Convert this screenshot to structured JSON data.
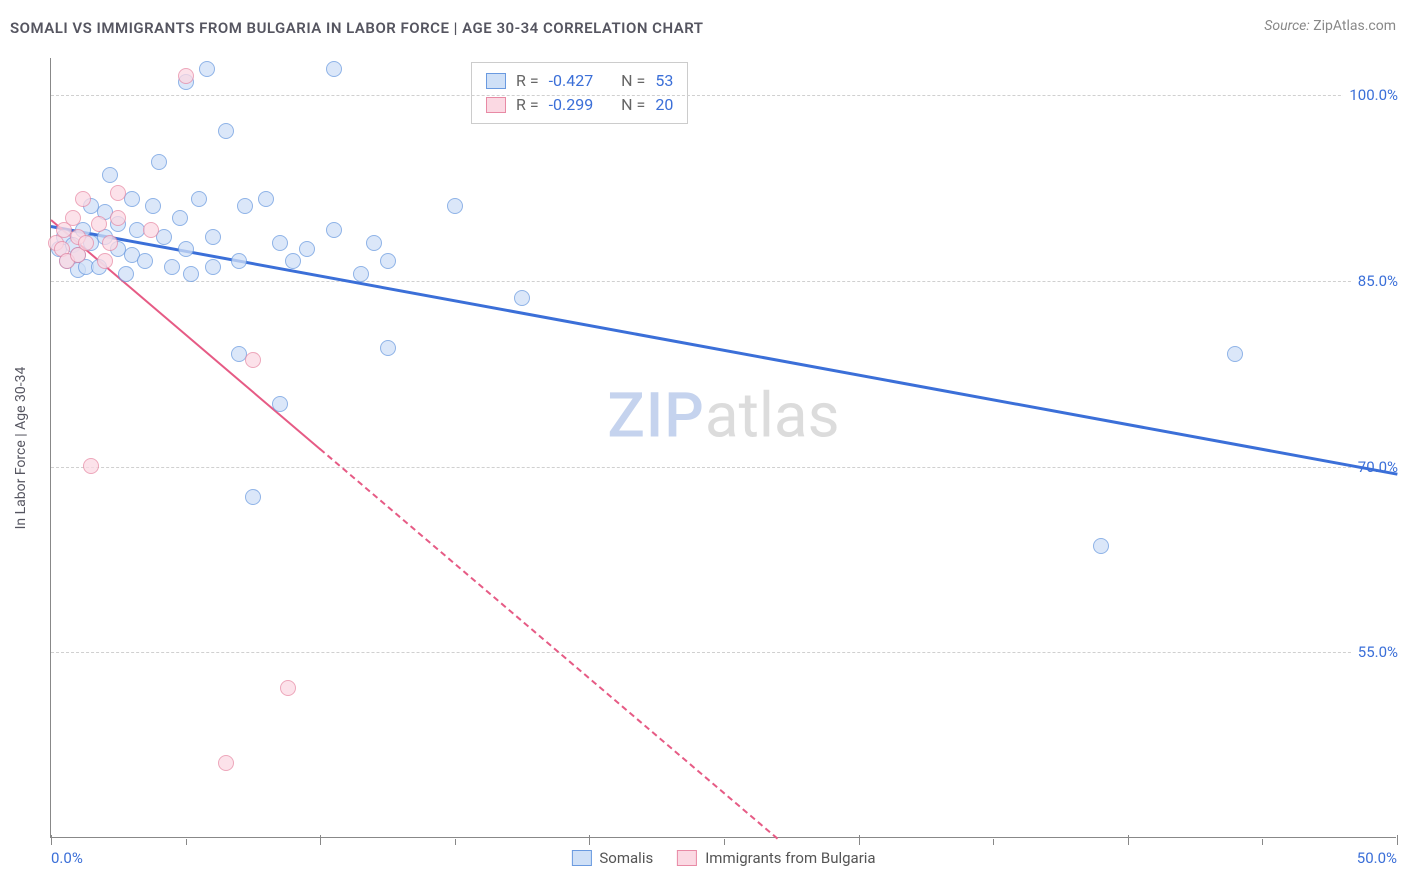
{
  "header": {
    "title": "SOMALI VS IMMIGRANTS FROM BULGARIA IN LABOR FORCE | AGE 30-34 CORRELATION CHART",
    "source_label": "Source:",
    "source_value": "ZipAtlas.com"
  },
  "chart": {
    "type": "scatter",
    "ylabel": "In Labor Force | Age 30-34",
    "xlim": [
      0,
      50
    ],
    "ylim": [
      40,
      103
    ],
    "background_color": "#ffffff",
    "grid_color": "#d0d0d0",
    "axis_color": "#888888",
    "tick_label_color": "#3b6fd8",
    "yticks": [
      {
        "v": 100,
        "label": "100.0%"
      },
      {
        "v": 85,
        "label": "85.0%"
      },
      {
        "v": 70,
        "label": "70.0%"
      },
      {
        "v": 55,
        "label": "55.0%"
      }
    ],
    "xticks_major": [
      0,
      10,
      20,
      30,
      40,
      50
    ],
    "xticks_minor": [
      5,
      15,
      25,
      35,
      45
    ],
    "xtick_labels": [
      {
        "v": 0,
        "label": "0.0%"
      },
      {
        "v": 50,
        "label": "50.0%"
      }
    ],
    "point_radius": 8,
    "series": [
      {
        "name": "Somalis",
        "fill": "#cfe0f7",
        "stroke": "#6a9ae0",
        "fill_opacity": 0.75,
        "trend": {
          "x1": 0,
          "y1": 89.5,
          "x2": 50,
          "y2": 69.5,
          "color": "#3b6fd8",
          "width": 2.5,
          "dashed_after_x": null
        },
        "stats": {
          "R": "-0.427",
          "N": "53"
        },
        "points": [
          [
            0.3,
            87.5
          ],
          [
            0.5,
            88.5
          ],
          [
            0.6,
            86.5
          ],
          [
            0.8,
            87.8
          ],
          [
            1.0,
            87.0
          ],
          [
            1.0,
            85.8
          ],
          [
            1.2,
            89.0
          ],
          [
            1.3,
            86.0
          ],
          [
            1.5,
            88.0
          ],
          [
            1.5,
            91.0
          ],
          [
            1.8,
            86.0
          ],
          [
            2.0,
            88.5
          ],
          [
            2.0,
            90.5
          ],
          [
            2.2,
            93.5
          ],
          [
            2.5,
            87.5
          ],
          [
            2.5,
            89.5
          ],
          [
            2.8,
            85.5
          ],
          [
            3.0,
            91.5
          ],
          [
            3.0,
            87.0
          ],
          [
            3.2,
            89.0
          ],
          [
            3.5,
            86.5
          ],
          [
            3.8,
            91.0
          ],
          [
            4.0,
            94.5
          ],
          [
            4.2,
            88.5
          ],
          [
            4.5,
            86.0
          ],
          [
            4.8,
            90.0
          ],
          [
            5.0,
            87.5
          ],
          [
            5.0,
            101.0
          ],
          [
            5.2,
            85.5
          ],
          [
            5.5,
            91.5
          ],
          [
            5.8,
            102.0
          ],
          [
            6.0,
            86.0
          ],
          [
            6.0,
            88.5
          ],
          [
            6.5,
            97.0
          ],
          [
            7.0,
            86.5
          ],
          [
            7.0,
            79.0
          ],
          [
            7.2,
            91.0
          ],
          [
            7.5,
            67.5
          ],
          [
            8.0,
            91.5
          ],
          [
            8.5,
            88.0
          ],
          [
            8.5,
            75.0
          ],
          [
            9.0,
            86.5
          ],
          [
            9.5,
            87.5
          ],
          [
            10.5,
            89.0
          ],
          [
            10.5,
            102.0
          ],
          [
            11.5,
            85.5
          ],
          [
            12.0,
            88.0
          ],
          [
            12.5,
            86.5
          ],
          [
            12.5,
            79.5
          ],
          [
            15.0,
            91.0
          ],
          [
            17.5,
            83.5
          ],
          [
            39.0,
            63.5
          ],
          [
            44.0,
            79.0
          ]
        ]
      },
      {
        "name": "Immigrants from Bulgaria",
        "fill": "#fbd9e3",
        "stroke": "#e88aa5",
        "fill_opacity": 0.75,
        "trend": {
          "x1": 0,
          "y1": 90.0,
          "x2": 27,
          "y2": 40.0,
          "color": "#e65b85",
          "width": 2,
          "dashed_after_x": 10
        },
        "stats": {
          "R": "-0.299",
          "N": "20"
        },
        "points": [
          [
            0.2,
            88.0
          ],
          [
            0.4,
            87.5
          ],
          [
            0.5,
            89.0
          ],
          [
            0.6,
            86.5
          ],
          [
            0.8,
            90.0
          ],
          [
            1.0,
            87.0
          ],
          [
            1.0,
            88.5
          ],
          [
            1.2,
            91.5
          ],
          [
            1.3,
            88.0
          ],
          [
            1.5,
            70.0
          ],
          [
            1.8,
            89.5
          ],
          [
            2.0,
            86.5
          ],
          [
            2.2,
            88.0
          ],
          [
            2.5,
            90.0
          ],
          [
            2.5,
            92.0
          ],
          [
            3.7,
            89.0
          ],
          [
            5.0,
            101.5
          ],
          [
            6.5,
            46.0
          ],
          [
            7.5,
            78.5
          ],
          [
            8.8,
            52.0
          ]
        ]
      }
    ],
    "legend": {
      "series1": "Somalis",
      "series2": "Immigrants from Bulgaria"
    },
    "stats_box_labels": {
      "R": "R =",
      "N": "N ="
    },
    "watermark": {
      "part1": "ZIP",
      "part2": "atlas"
    }
  }
}
